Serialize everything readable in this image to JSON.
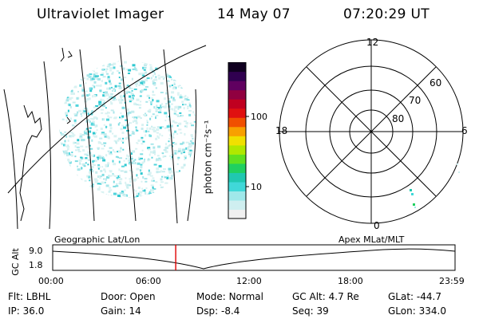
{
  "header": {
    "instrument": "Ultraviolet Imager",
    "date": "14 May 07",
    "time": "07:20:29 UT"
  },
  "colorbar": {
    "unit_label": "photon cm⁻²s⁻¹",
    "ticks": [
      "100",
      "10"
    ],
    "colors": [
      "#f0f0f0",
      "#cfeff0",
      "#9fe8ea",
      "#40d8d8",
      "#20c8b0",
      "#20d060",
      "#60e020",
      "#b0e800",
      "#f0e000",
      "#f8a000",
      "#f05000",
      "#e01010",
      "#c00020",
      "#900040",
      "#600060",
      "#300050",
      "#100020"
    ]
  },
  "left_panel": {
    "name": "earth-image"
  },
  "polar_plot": {
    "hour_labels": {
      "top": "12",
      "left": "18",
      "right": "6",
      "bottom": "0"
    },
    "lat_labels": [
      "60",
      "70",
      "80"
    ]
  },
  "timeline": {
    "ylabel": "GC Alt",
    "yticks": [
      "9.0",
      "1.8"
    ],
    "left_title": "Geographic Lat/Lon",
    "right_title": "Apex  MLat/MLT",
    "xticks": [
      "00:00",
      "06:00",
      "12:00",
      "18:00",
      "23:59"
    ],
    "marker_time": "07:20",
    "marker_color": "#e00000"
  },
  "footer": {
    "row1": [
      {
        "label": "Flt:",
        "value": "LBHL"
      },
      {
        "label": "Door:",
        "value": "Open"
      },
      {
        "label": "Mode:",
        "value": "Normal"
      },
      {
        "label": "GC Alt:",
        "value": "4.7 Re"
      },
      {
        "label": "GLat:",
        "value": "-44.7"
      }
    ],
    "row2": [
      {
        "label": "IP:",
        "value": "36.0"
      },
      {
        "label": "Gain:",
        "value": "14"
      },
      {
        "label": "Dsp:",
        "value": "-8.4"
      },
      {
        "label": "Seq:",
        "value": "39"
      },
      {
        "label": "GLon:",
        "value": "334.0"
      }
    ]
  }
}
